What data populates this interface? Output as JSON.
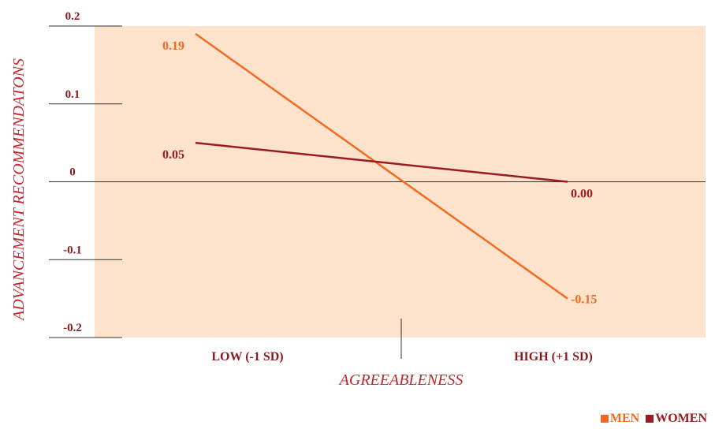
{
  "chart_data": {
    "type": "line",
    "categories": [
      "LOW (-1 SD)",
      "HIGH (+1 SD)"
    ],
    "xlabel": "AGREEABLENESS",
    "ylabel": "ADVANCEMENT RECOMMENDATONS",
    "ylim": [
      -0.2,
      0.2
    ],
    "yticks": [
      "0.2",
      "0.1",
      "0",
      "-0.1",
      "-0.2"
    ],
    "legend_position": "bottom-right",
    "series": [
      {
        "name": "MEN",
        "values": [
          0.19,
          -0.15
        ],
        "labels": [
          "0.19",
          "-0.15"
        ],
        "color": "#f26a21"
      },
      {
        "name": "WOMEN",
        "values": [
          0.05,
          0.0
        ],
        "labels": [
          "0.05",
          "0.00"
        ],
        "color": "#9b1b1f"
      }
    ],
    "colors": {
      "background_band": "#fde3cc",
      "axis_text": "#8b1a1f",
      "axis_title": "#c2272d"
    }
  }
}
